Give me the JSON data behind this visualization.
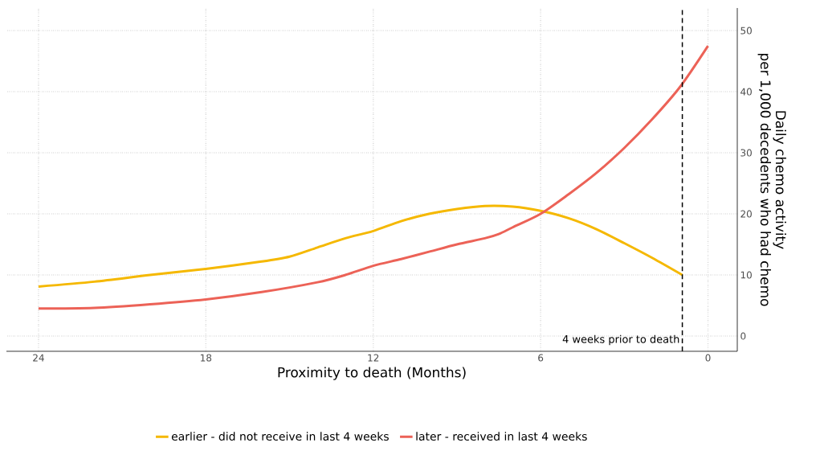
{
  "chart_data": {
    "type": "line",
    "xlabel": "Proximity to death (Months)",
    "ylabel": "Daily chemo activity\nper 1,000 decedents who had chemo",
    "xlim": [
      25.15,
      -1.05
    ],
    "xticks": [
      24,
      18,
      12,
      6,
      0
    ],
    "ylim": [
      -2.5,
      53.7
    ],
    "yticks": [
      0,
      10,
      20,
      30,
      40,
      50
    ],
    "grid": true,
    "legend": "bottom",
    "line_style": "solid",
    "ref_lines": [
      {
        "axis": "x",
        "value": 0.92,
        "label": "4 weeks prior to death",
        "color": "#000000",
        "line_style": "dashed"
      }
    ],
    "series": [
      {
        "name": "earlier - did not receive in last 4 weeks",
        "color": "#f5b800",
        "x": [
          24,
          22,
          20,
          18,
          16,
          15,
          14,
          13,
          12,
          11,
          10,
          9,
          8,
          7,
          6,
          5,
          4,
          3,
          2,
          0.92
        ],
        "values": [
          8.1,
          8.9,
          10.0,
          11.0,
          12.2,
          13.0,
          14.5,
          16.0,
          17.2,
          18.8,
          20.0,
          20.8,
          21.3,
          21.2,
          20.5,
          19.3,
          17.5,
          15.2,
          12.8,
          10.0
        ]
      },
      {
        "name": "later - received in last 4 weeks",
        "color": "#ec6257",
        "x": [
          24,
          22,
          20,
          18,
          16,
          14,
          13,
          12,
          11,
          10,
          9,
          8,
          7.5,
          7,
          6,
          5,
          4,
          3,
          2,
          1,
          0
        ],
        "values": [
          4.5,
          4.6,
          5.2,
          6.0,
          7.2,
          8.8,
          10.0,
          11.5,
          12.6,
          13.8,
          15.0,
          16.0,
          16.7,
          17.8,
          20.0,
          23.2,
          26.7,
          30.8,
          35.5,
          40.8,
          47.5
        ]
      }
    ]
  }
}
